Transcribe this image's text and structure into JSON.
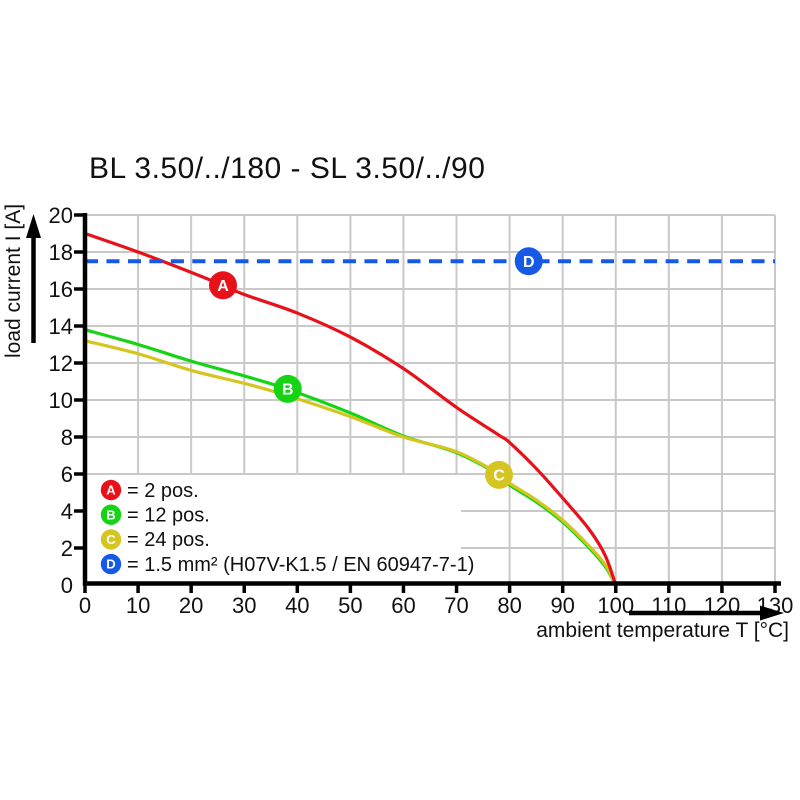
{
  "page": {
    "background": "#ffffff"
  },
  "chart_data": {
    "type": "line",
    "title": "BL 3.50/../180 - SL 3.50/../90",
    "xlabel": "ambient temperature T [°C]",
    "ylabel": "load current I [A]",
    "xlim": [
      0,
      130
    ],
    "ylim": [
      0,
      20
    ],
    "xtick_step": 10,
    "ytick_step": 2,
    "grid": true,
    "grid_color": "#c9c9c9",
    "axis_color": "#000000",
    "legend_position": "bottom-left",
    "series": [
      {
        "id": "A",
        "legend_label": "= 2 pos.",
        "color": "#e8111a",
        "line_style": "solid",
        "z_order": 3,
        "marker_at": {
          "x": 26,
          "y": 16.2
        },
        "points": [
          [
            0,
            19.0
          ],
          [
            10,
            18.0
          ],
          [
            20,
            16.9
          ],
          [
            26,
            16.2
          ],
          [
            30,
            15.7
          ],
          [
            40,
            14.7
          ],
          [
            50,
            13.4
          ],
          [
            60,
            11.7
          ],
          [
            70,
            9.6
          ],
          [
            78,
            8.1
          ],
          [
            80,
            7.7
          ],
          [
            85,
            6.3
          ],
          [
            90,
            4.7
          ],
          [
            95,
            3.0
          ],
          [
            98,
            1.6
          ],
          [
            100,
            0
          ]
        ]
      },
      {
        "id": "B",
        "legend_label": "= 12 pos.",
        "color": "#14d414",
        "line_style": "solid",
        "z_order": 1,
        "marker_at": {
          "x": 38.2,
          "y": 10.6
        },
        "points": [
          [
            0,
            13.8
          ],
          [
            10,
            13.0
          ],
          [
            20,
            12.1
          ],
          [
            30,
            11.3
          ],
          [
            38,
            10.6
          ],
          [
            50,
            9.3
          ],
          [
            60,
            8.05
          ],
          [
            70,
            7.15
          ],
          [
            78,
            5.95
          ],
          [
            80,
            5.4
          ],
          [
            85,
            4.5
          ],
          [
            90,
            3.4
          ],
          [
            95,
            2.0
          ],
          [
            98,
            1.0
          ],
          [
            100,
            0
          ]
        ]
      },
      {
        "id": "C",
        "legend_label": "= 24 pos.",
        "color": "#d4c521",
        "line_style": "solid",
        "z_order": 2,
        "marker_at": {
          "x": 78,
          "y": 5.95
        },
        "points": [
          [
            0,
            13.2
          ],
          [
            10,
            12.5
          ],
          [
            20,
            11.6
          ],
          [
            30,
            10.9
          ],
          [
            38,
            10.25
          ],
          [
            50,
            9.1
          ],
          [
            60,
            8.0
          ],
          [
            70,
            7.2
          ],
          [
            78,
            6.0
          ],
          [
            80,
            5.5
          ],
          [
            85,
            4.6
          ],
          [
            90,
            3.5
          ],
          [
            95,
            2.1
          ],
          [
            98,
            1.1
          ],
          [
            100,
            0
          ]
        ]
      },
      {
        "id": "D",
        "legend_label": "= 1.5 mm² (H07V-K1.5 / EN 60947-7-1)",
        "color": "#1659e6",
        "line_style": "dashed",
        "z_order": 4,
        "marker_at": {
          "x": 83.6,
          "y": 17.5
        },
        "points": [
          [
            0,
            17.5
          ],
          [
            130,
            17.5
          ]
        ]
      }
    ]
  }
}
